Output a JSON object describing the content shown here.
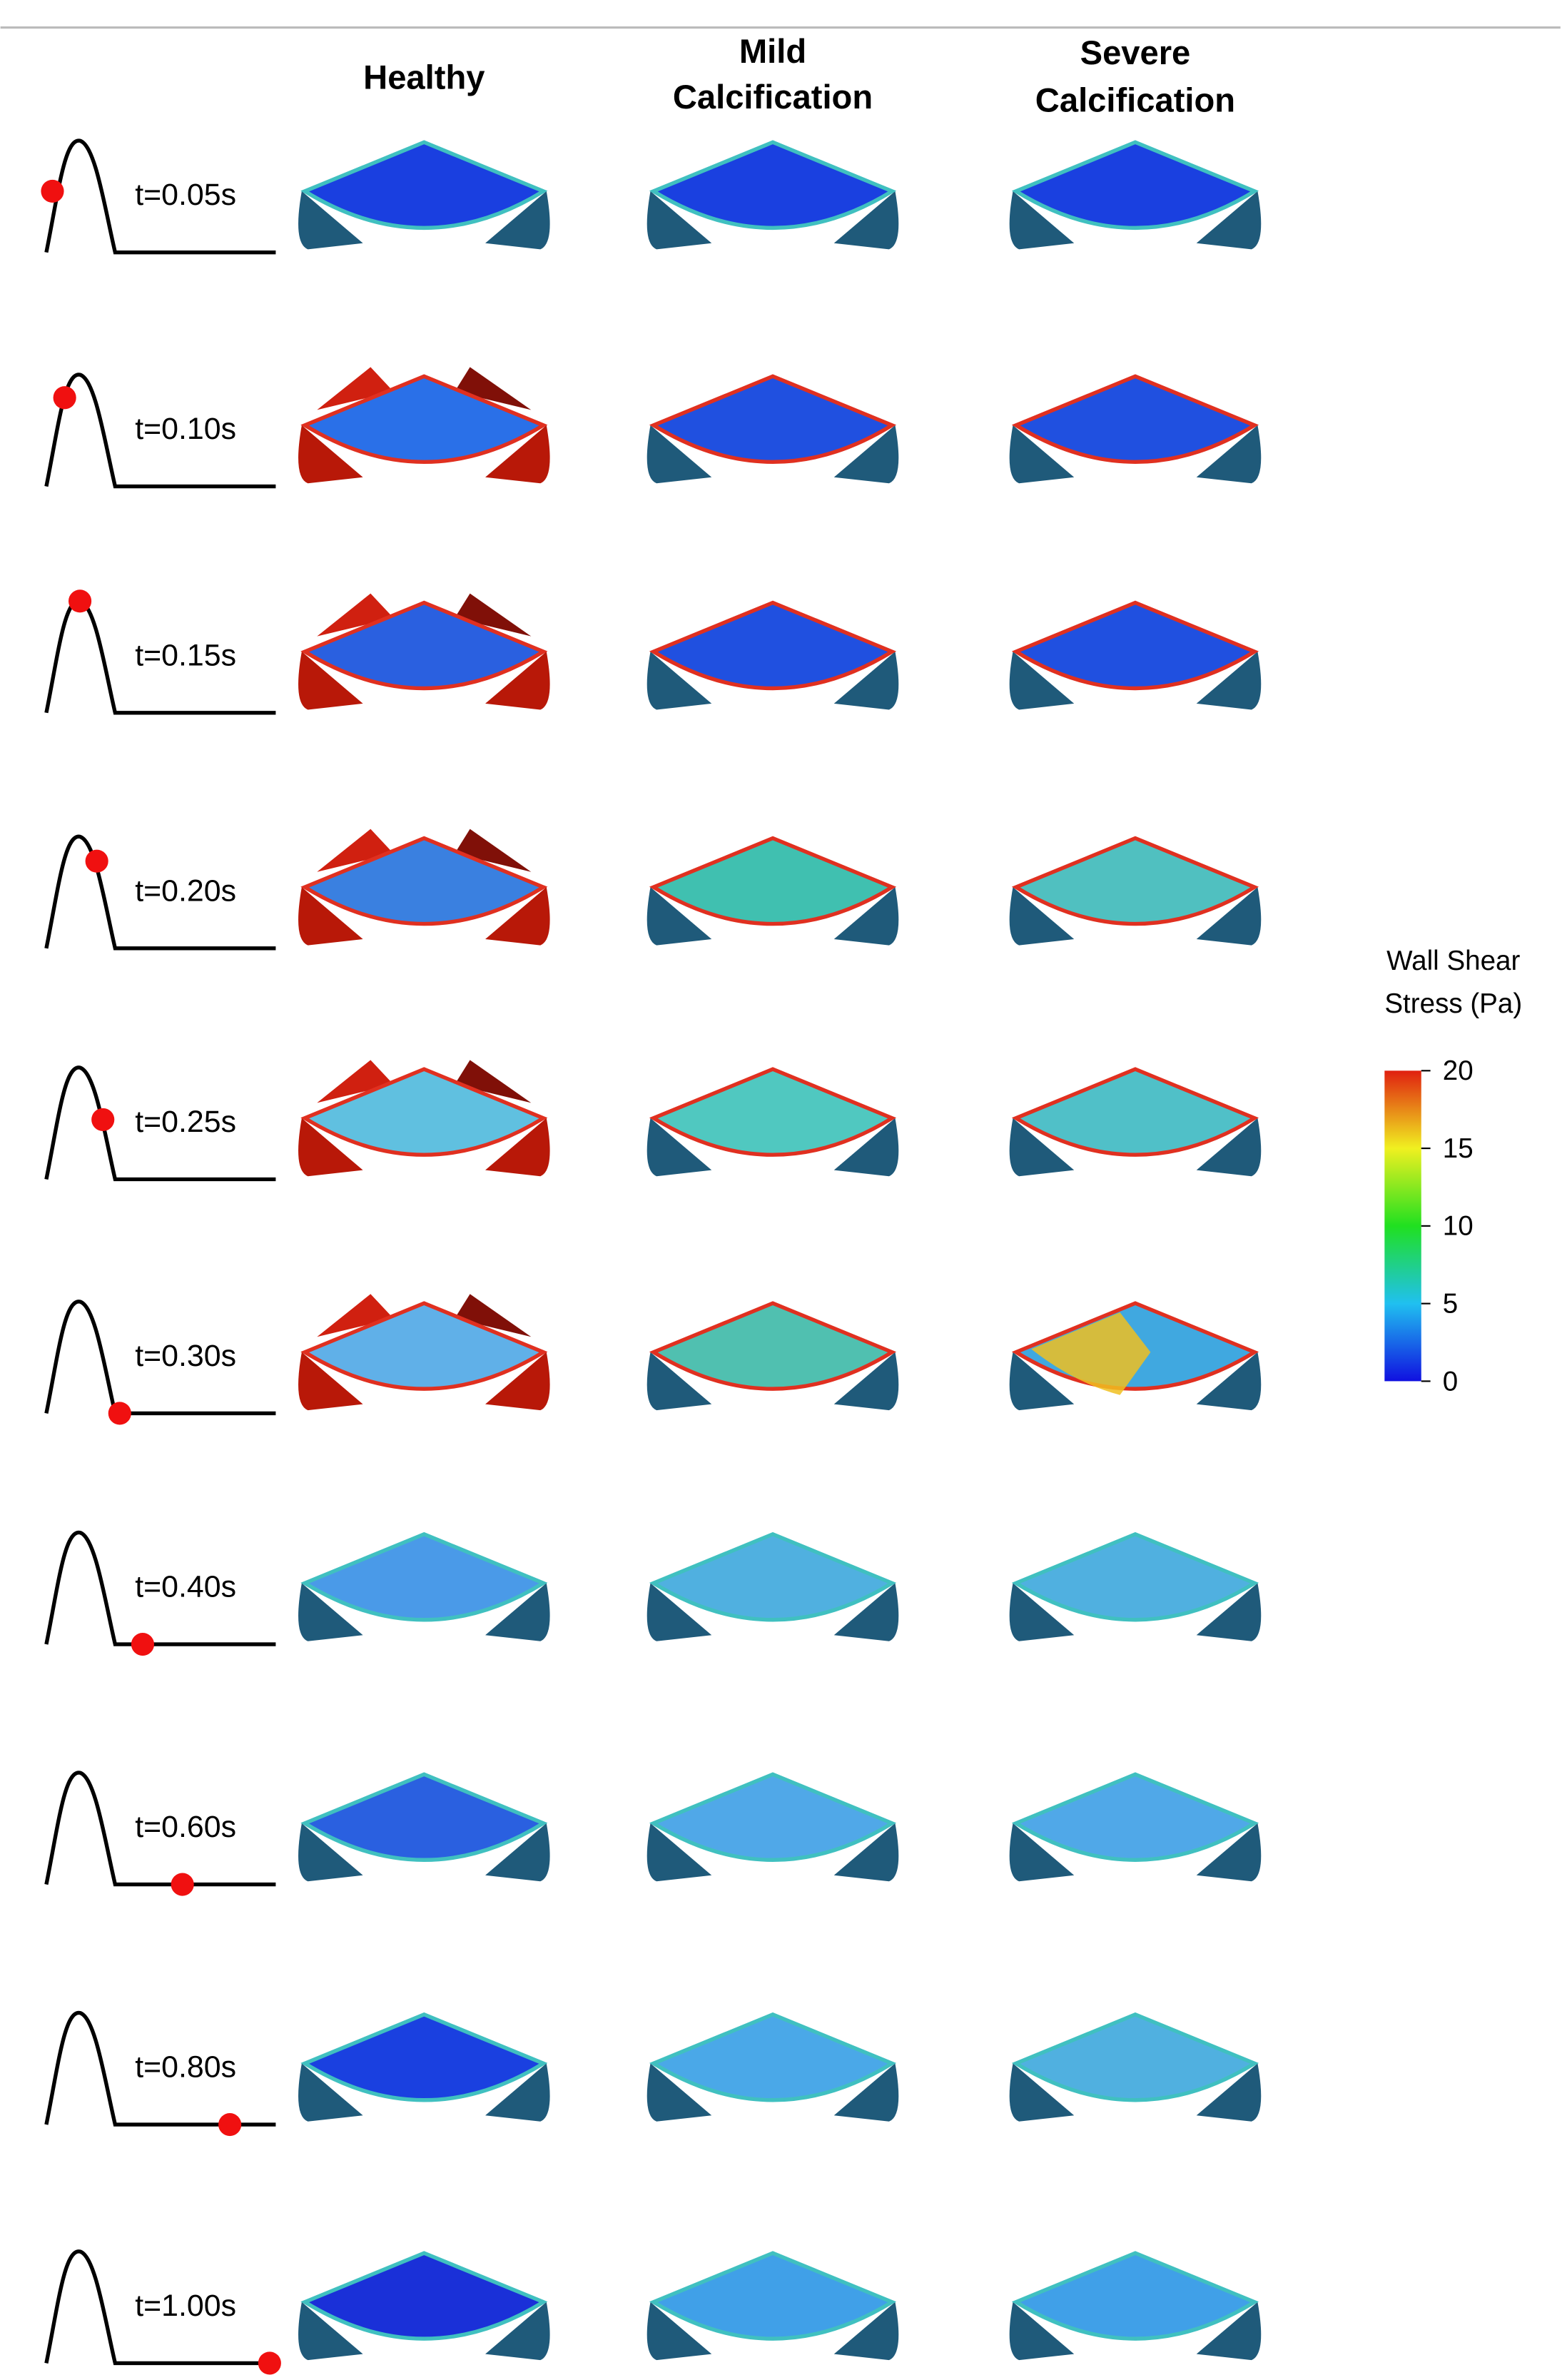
{
  "header": {
    "columns": [
      [
        "Healthy"
      ],
      [
        "Mild",
        "Calcification"
      ],
      [
        "Severe",
        "Calcification"
      ]
    ]
  },
  "rows": [
    "t=0.05s",
    "t=0.10s",
    "t=0.15s",
    "t=0.20s",
    "t=0.25s",
    "t=0.30s",
    "t=0.40s",
    "t=0.60s",
    "t=0.80s",
    "t=1.00s"
  ],
  "colorbar": {
    "title": [
      "Wall Shear",
      "Stress (Pa)"
    ],
    "lim": [
      0,
      20
    ],
    "ticks": [
      0,
      5,
      10,
      15,
      20
    ],
    "colors": [
      "#1010e0",
      "#20c0f0",
      "#20e020",
      "#f0f020",
      "#e02010"
    ]
  }
}
